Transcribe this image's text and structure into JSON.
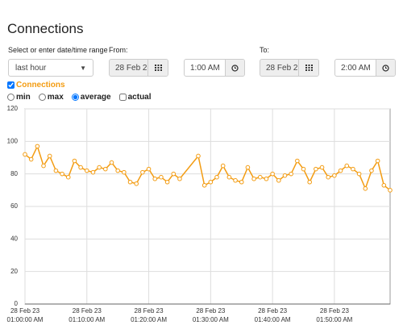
{
  "header": {
    "title": "Connections"
  },
  "controls": {
    "range_label": "Select or enter date/time range",
    "range_select": "last hour",
    "from_label": "From:",
    "from_date": "28 Feb 2",
    "from_time": "1:00 AM",
    "to_label": "To:",
    "to_date": "28 Feb 2",
    "to_time": "2:00 AM",
    "options": [
      "min",
      "max",
      "average",
      "actual"
    ],
    "options_checked": [
      false,
      false,
      true,
      false
    ]
  },
  "chart_data": {
    "type": "line",
    "x": [
      0,
      1,
      2,
      3,
      4,
      5,
      6,
      7,
      8,
      9,
      10,
      11,
      12,
      13,
      14,
      15,
      16,
      17,
      18,
      19,
      20,
      21,
      22,
      23,
      24,
      25,
      28,
      29,
      30,
      31,
      32,
      33,
      34,
      35,
      36,
      37,
      38,
      39,
      40,
      41,
      42,
      43,
      44,
      45,
      46,
      47,
      48,
      49,
      50,
      51,
      52,
      53,
      54,
      55,
      56,
      57,
      58,
      59
    ],
    "series": [
      {
        "name": "Connections",
        "color": "#f39c12",
        "values": [
          92,
          89,
          97,
          85,
          91,
          82,
          80,
          78,
          88,
          84,
          82,
          81,
          84,
          83,
          87,
          82,
          81,
          75,
          74,
          81,
          83,
          77,
          78,
          75,
          80,
          77,
          91,
          73,
          75,
          78,
          85,
          78,
          76,
          75,
          84,
          77,
          78,
          77,
          80,
          76,
          79,
          80,
          88,
          83,
          75,
          83,
          84,
          78,
          79,
          82,
          85,
          83,
          80,
          71,
          82,
          88,
          73,
          70
        ]
      }
    ],
    "xlim": [
      0,
      59
    ],
    "xticks": [
      {
        "value": 0,
        "label": "28 Feb 23 01:00:00 AM"
      },
      {
        "value": 10,
        "label": "28 Feb 23 01:10:00 AM"
      },
      {
        "value": 20,
        "label": "28 Feb 23 01:20:00 AM"
      },
      {
        "value": 30,
        "label": "28 Feb 23 01:30:00 AM"
      },
      {
        "value": 40,
        "label": "28 Feb 23 01:40:00 AM"
      },
      {
        "value": 50,
        "label": "28 Feb 23 01:50:00 AM"
      }
    ],
    "ylim": [
      0,
      120
    ],
    "yticks": [
      0,
      20,
      40,
      60,
      80,
      100,
      120
    ],
    "grid": true
  }
}
